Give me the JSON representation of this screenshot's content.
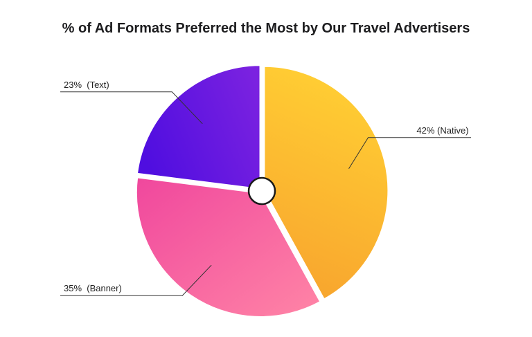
{
  "chart_data": {
    "type": "pie",
    "title": "% of Ad Formats Preferred the Most by Our Travel Advertisers",
    "slices": [
      {
        "category": "Native",
        "value": 42,
        "label": "42% (Native)",
        "color_start": "#ffcc33",
        "color_end": "#f8a52e"
      },
      {
        "category": "Banner",
        "value": 35,
        "label": "35%  (Banner)",
        "color_start": "#f0479d",
        "color_end": "#ff85a6"
      },
      {
        "category": "Text",
        "value": 23,
        "label": "23%  (Text)",
        "color_start": "#4f0ee0",
        "color_end": "#7b22e0"
      }
    ],
    "legend": "none",
    "grid": false
  }
}
